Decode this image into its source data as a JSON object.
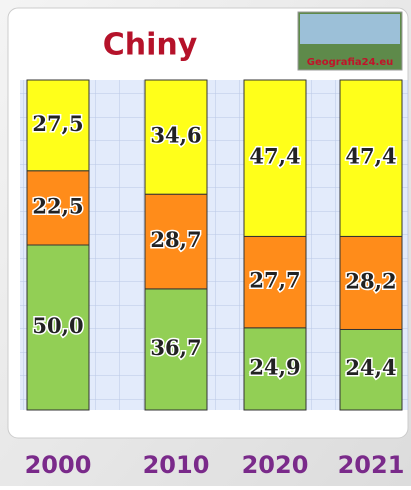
{
  "chart_data": {
    "type": "stacked-bar",
    "title": "Chiny",
    "logo_text": "Geografia24.eu",
    "categories": [
      "2000",
      "2010",
      "2020",
      "2021"
    ],
    "ylim": [
      0,
      100
    ],
    "series": [
      {
        "color": "#92cf55",
        "values": [
          50.0,
          36.7,
          24.9,
          24.4
        ],
        "value_labels": [
          "50,0",
          "36,7",
          "24,9",
          "24,4"
        ]
      },
      {
        "color": "#ff8c1a",
        "values": [
          22.5,
          28.7,
          27.7,
          28.2
        ],
        "value_labels": [
          "22,5",
          "28,7",
          "27,7",
          "28,2"
        ]
      },
      {
        "color": "#ffff1a",
        "values": [
          27.5,
          34.6,
          47.4,
          47.4
        ],
        "value_labels": [
          "27,5",
          "34,6",
          "47,4",
          "47,4"
        ]
      }
    ]
  }
}
